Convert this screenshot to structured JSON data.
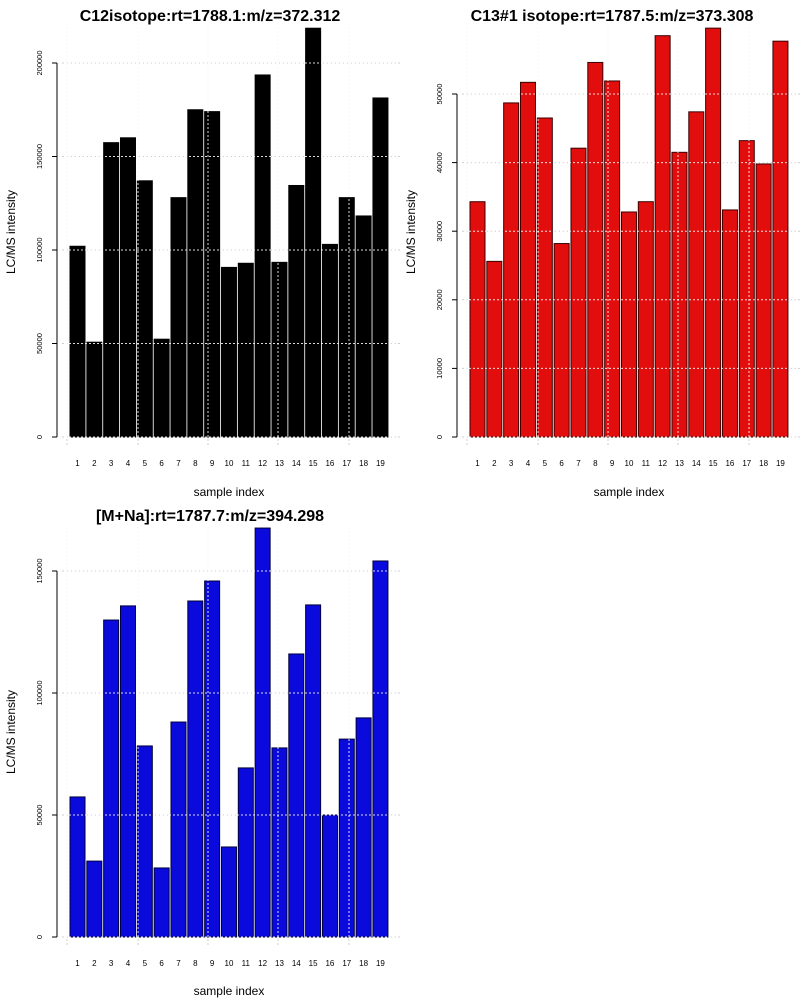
{
  "chart_data": [
    {
      "type": "bar",
      "title": "C12isotope:rt=1788.1:m/z=372.312",
      "xlabel": "sample index",
      "ylabel": "LC/MS intensity",
      "categories": [
        "1",
        "2",
        "3",
        "4",
        "5",
        "6",
        "7",
        "8",
        "9",
        "10",
        "11",
        "12",
        "13",
        "14",
        "15",
        "16",
        "17",
        "18",
        "19"
      ],
      "values": [
        102000,
        50700,
        157400,
        160000,
        137000,
        52300,
        128000,
        175000,
        174000,
        90700,
        92900,
        193600,
        93400,
        134500,
        218600,
        103000,
        128000,
        118200,
        181300
      ],
      "yticks": [
        0,
        50000,
        100000,
        150000,
        200000
      ],
      "ytick_labels": [
        "0",
        "50000",
        "100000",
        "150000",
        "200000"
      ],
      "ylim": [
        0,
        218600
      ],
      "grid": true,
      "bar_color": "#000000",
      "border_color": "#000000"
    },
    {
      "type": "bar",
      "title": "C13#1 isotope:rt=1787.5:m/z=373.308",
      "xlabel": "sample index",
      "ylabel": "LC/MS intensity",
      "categories": [
        "1",
        "2",
        "3",
        "4",
        "5",
        "6",
        "7",
        "8",
        "9",
        "10",
        "11",
        "12",
        "13",
        "14",
        "15",
        "16",
        "17",
        "18",
        "19"
      ],
      "values": [
        34300,
        25600,
        48700,
        51700,
        46500,
        28200,
        42100,
        54600,
        51900,
        32800,
        34300,
        58500,
        41500,
        47400,
        59600,
        33100,
        43200,
        39800,
        57700
      ],
      "yticks": [
        0,
        10000,
        20000,
        30000,
        40000,
        50000
      ],
      "ytick_labels": [
        "0",
        "10000",
        "20000",
        "30000",
        "40000",
        "50000"
      ],
      "ylim": [
        0,
        59600
      ],
      "grid": true,
      "bar_color": "#E20E0E",
      "border_color": "#3a0000"
    },
    {
      "type": "bar",
      "title": "[M+Na]:rt=1787.7:m/z=394.298",
      "xlabel": "sample index",
      "ylabel": "LC/MS intensity",
      "categories": [
        "1",
        "2",
        "3",
        "4",
        "5",
        "6",
        "7",
        "8",
        "9",
        "10",
        "11",
        "12",
        "13",
        "14",
        "15",
        "16",
        "17",
        "18",
        "19"
      ],
      "values": [
        57400,
        31100,
        129900,
        135700,
        78300,
        28300,
        88100,
        137700,
        145900,
        36900,
        69300,
        167600,
        77500,
        116000,
        136100,
        50000,
        81100,
        89800,
        154100
      ],
      "yticks": [
        0,
        50000,
        100000,
        150000
      ],
      "ytick_labels": [
        "0",
        "50000",
        "100000",
        "150000"
      ],
      "ylim": [
        0,
        167600
      ],
      "grid": true,
      "bar_color": "#0A0ADC",
      "border_color": "#00003a"
    }
  ]
}
